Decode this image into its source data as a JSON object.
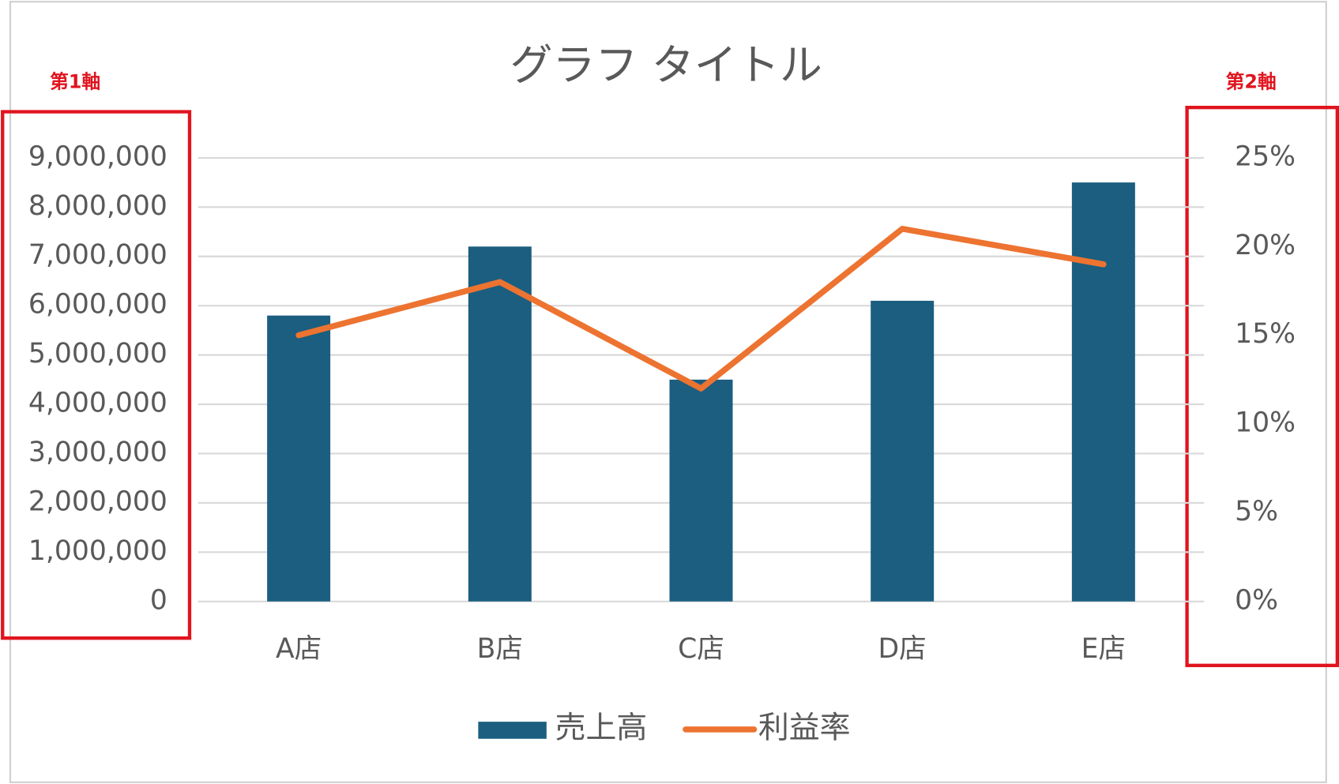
{
  "chart_data": {
    "type": "bar",
    "title": "グラフ タイトル",
    "categories": [
      "A店",
      "B店",
      "C店",
      "D店",
      "E店"
    ],
    "series": [
      {
        "name": "売上高",
        "type": "bar",
        "color": "#1b5e80",
        "values": [
          5800000,
          7200000,
          4500000,
          6100000,
          8500000
        ]
      },
      {
        "name": "利益率",
        "type": "line",
        "axis": "y2",
        "color": "#ed7330",
        "values": [
          15,
          18,
          12,
          21,
          19
        ]
      }
    ],
    "ylim": [
      0,
      9000000
    ],
    "yticks": [
      0,
      {
        "value": 1000000,
        "label": "1,000,000"
      },
      {
        "value": 2000000,
        "label": "2,000,000"
      },
      {
        "value": 3000000,
        "label": "3,000,000"
      },
      {
        "value": 4000000,
        "label": "4,000,000"
      },
      {
        "value": 5000000,
        "label": "5,000,000"
      },
      {
        "value": 6000000,
        "label": "6,000,000"
      },
      {
        "value": 7000000,
        "label": "7,000,000"
      },
      {
        "value": 8000000,
        "label": "8,000,000"
      },
      {
        "value": 9000000,
        "label": "9,000,000"
      }
    ],
    "y2lim": [
      0,
      25
    ],
    "y2ticks": [
      {
        "value": 0,
        "label": "0%"
      },
      {
        "value": 5,
        "label": "5%"
      },
      {
        "value": 10,
        "label": "10%"
      },
      {
        "value": 15,
        "label": "15%"
      },
      {
        "value": 20,
        "label": "20%"
      },
      {
        "value": 25,
        "label": "25%"
      }
    ],
    "grid": true,
    "legend": "bottom",
    "annotations": [
      "第1軸",
      "第2軸"
    ]
  }
}
